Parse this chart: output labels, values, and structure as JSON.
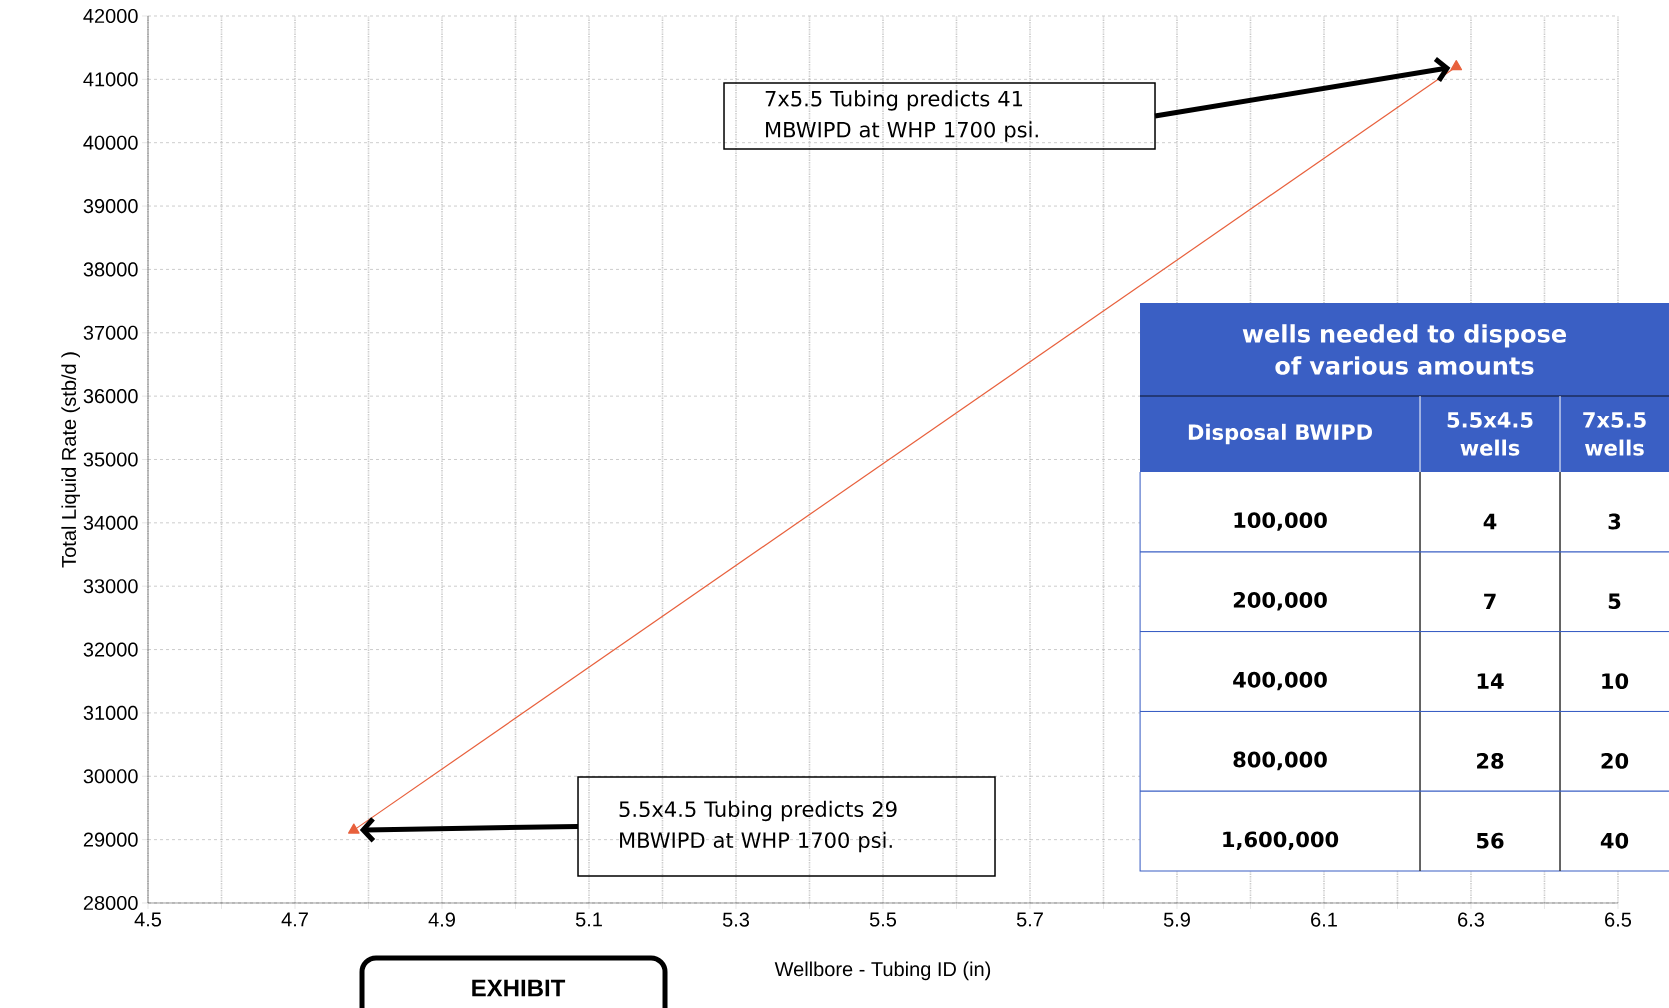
{
  "chart_data": {
    "type": "line",
    "xlabel": "Wellbore - Tubing ID (in)",
    "ylabel": "Total Liquid Rate (stb/d )",
    "x": [
      4.78,
      6.28
    ],
    "series": [
      {
        "color": "#e8603c",
        "values": [
          29150,
          41200
        ]
      }
    ],
    "marker": "triangle",
    "line_style": "solid",
    "grid": true,
    "xlim": [
      4.5,
      6.5
    ],
    "ylim": [
      28000,
      42000
    ],
    "xticks": [
      4.5,
      {
        "value": 4.6,
        "label": null
      },
      4.7,
      {
        "value": 4.8,
        "label": null
      },
      4.9,
      {
        "value": 5.0,
        "label": null
      },
      5.1,
      {
        "value": 5.2,
        "label": null
      },
      5.3,
      {
        "value": 5.4,
        "label": null
      },
      5.5,
      {
        "value": 5.6,
        "label": null
      },
      5.7,
      {
        "value": 5.8,
        "label": null
      },
      5.9,
      {
        "value": 6.0,
        "label": null
      },
      6.1,
      {
        "value": 6.2,
        "label": null
      },
      6.3,
      {
        "value": 6.4,
        "label": null
      },
      6.5
    ],
    "yticks": [
      28000,
      29000,
      30000,
      31000,
      32000,
      33000,
      34000,
      35000,
      36000,
      37000,
      38000,
      39000,
      40000,
      41000,
      42000
    ],
    "annotations": [
      "7x5.5 Tubing predicts 41 MBWIPD at WHP 1700 psi.",
      "5.5x4.5 Tubing predicts 29 MBWIPD at WHP 1700 psi.",
      "EXHIBIT",
      "wells needed to dispose of various amounts",
      "Disposal BWIPD",
      "5.5x4.5 wells",
      "7x5.5 wells",
      "100,000",
      "4",
      "3",
      "200,000",
      "7",
      "5",
      "400,000",
      "14",
      "10",
      "800,000",
      "28",
      "20",
      "1,600,000",
      "56",
      "40"
    ]
  }
}
